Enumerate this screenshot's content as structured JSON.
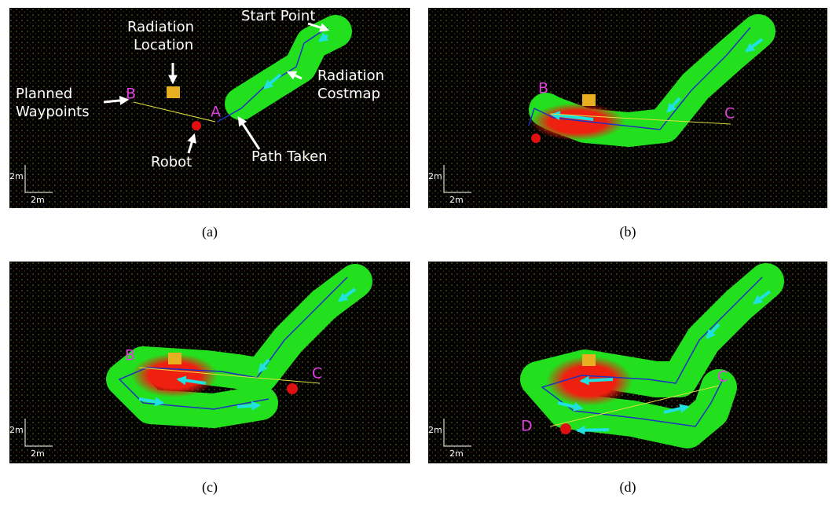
{
  "panels": [
    {
      "caption": "(a)",
      "scale": {
        "x": "2m",
        "y": "2m"
      },
      "waypoints": [
        "A",
        "B"
      ],
      "annotations": [
        {
          "lines": [
            "Start Point"
          ]
        },
        {
          "lines": [
            "Radiation",
            "Location"
          ]
        },
        {
          "lines": [
            "Planned",
            "Waypoints"
          ]
        },
        {
          "lines": [
            "Radiation",
            "Costmap"
          ]
        },
        {
          "lines": [
            "Robot"
          ]
        },
        {
          "lines": [
            "Path Taken"
          ]
        }
      ]
    },
    {
      "caption": "(b)",
      "scale": {
        "x": "2m",
        "y": "2m"
      },
      "waypoints": [
        "B",
        "C"
      ]
    },
    {
      "caption": "(c)",
      "scale": {
        "x": "2m",
        "y": "2m"
      },
      "waypoints": [
        "B",
        "C"
      ]
    },
    {
      "caption": "(d)",
      "scale": {
        "x": "2m",
        "y": "2m"
      },
      "waypoints": [
        "C",
        "D"
      ]
    }
  ]
}
